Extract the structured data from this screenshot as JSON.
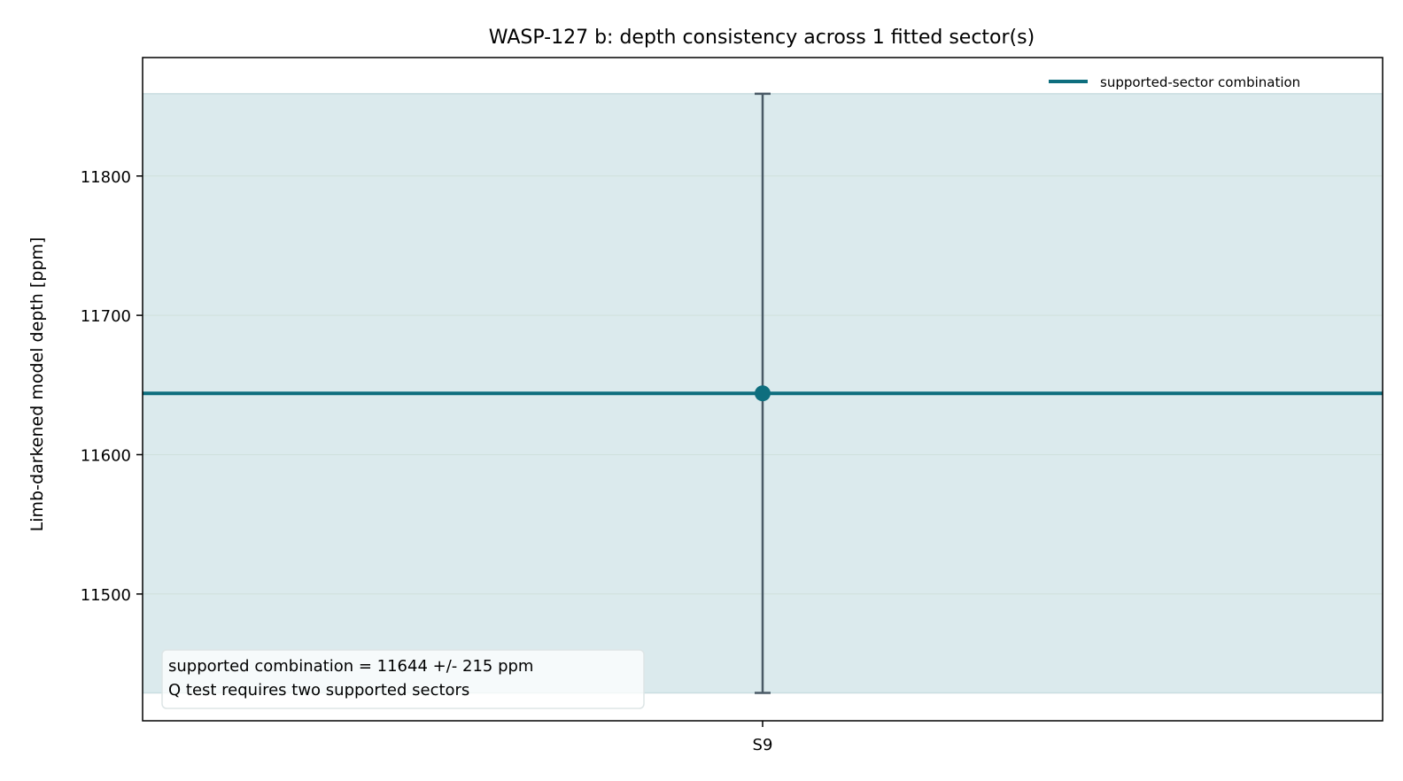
{
  "chart_data": {
    "type": "scatter",
    "title": "WASP-127 b: depth consistency across 1 fitted sector(s)",
    "xlabel": "",
    "ylabel": "Limb-darkened model depth [ppm]",
    "ylim": [
      11409,
      11885
    ],
    "yticks": [
      11500,
      11600,
      11700,
      11800
    ],
    "ytick_labels": [
      "11500",
      "11600",
      "11700",
      "11800"
    ],
    "categories": [
      "S9"
    ],
    "points": [
      {
        "category": "S9",
        "value": 11644,
        "err_low": 215,
        "err_high": 215
      }
    ],
    "combination": {
      "value": 11644,
      "band_low": 11429,
      "band_high": 11859
    },
    "grid": "horizontal",
    "legend": {
      "placement": "top-right",
      "entries": [
        "supported-sector combination"
      ]
    },
    "annotation": [
      "supported combination = 11644 +/- 215 ppm",
      "Q test requires two supported sectors"
    ],
    "colors": {
      "line": "#0e6e7e",
      "band": "#dbeaed",
      "errorbar": "#4a5a66",
      "point": "#0e6e7e",
      "grid": "#cfe0dc"
    }
  }
}
